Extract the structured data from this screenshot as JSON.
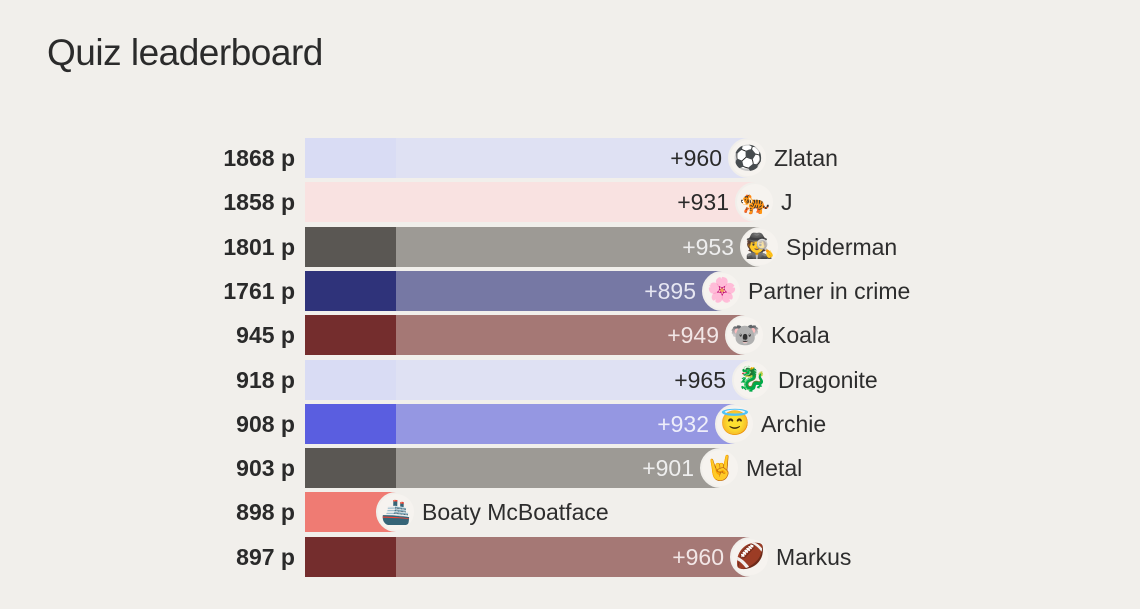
{
  "title": "Quiz leaderboard",
  "rows": [
    {
      "score": "1868 p",
      "delta": "+960",
      "name": "Zlatan",
      "avatar": "soccer-ball",
      "glyph": "⚽",
      "base": "#d9dcf4",
      "ext": "#dfe1f3",
      "delta_color": "#2a2a2a"
    },
    {
      "score": "1858 p",
      "delta": "+931",
      "name": "J",
      "avatar": "tiger",
      "glyph": "🐅",
      "base": "#f9e2e1",
      "ext": "#f9e2e1",
      "delta_color": "#2a2a2a"
    },
    {
      "score": "1801 p",
      "delta": "+953",
      "name": "Spiderman",
      "avatar": "spy",
      "glyph": "🕵",
      "base": "#5a5753",
      "ext": "#9d9a95",
      "delta_color": "#eeeeee"
    },
    {
      "score": "1761 p",
      "delta": "+895",
      "name": "Partner in crime",
      "avatar": "flower",
      "glyph": "🌸",
      "base": "#2f337a",
      "ext": "#7678a4",
      "delta_color": "#e6e6f2"
    },
    {
      "score": "945 p",
      "delta": "+949",
      "name": "Koala",
      "avatar": "koala",
      "glyph": "🐨",
      "base": "#742d2d",
      "ext": "#a57875",
      "delta_color": "#f2e6e6"
    },
    {
      "score": "918 p",
      "delta": "+965",
      "name": "Dragonite",
      "avatar": "dragon",
      "glyph": "🐉",
      "base": "#d9dcf4",
      "ext": "#dfe1f3",
      "delta_color": "#2a2a2a"
    },
    {
      "score": "908 p",
      "delta": "+932",
      "name": "Archie",
      "avatar": "angel",
      "glyph": "😇",
      "base": "#5a5ee0",
      "ext": "#9597e2",
      "delta_color": "#eeeefa"
    },
    {
      "score": "903 p",
      "delta": "+901",
      "name": "Metal",
      "avatar": "horns-hand",
      "glyph": "🤘",
      "base": "#5a5753",
      "ext": "#9d9a95",
      "delta_color": "#eeeeee"
    },
    {
      "score": "898 p",
      "delta": "",
      "name": "Boaty McBoatface",
      "avatar": "ship",
      "glyph": "🚢",
      "base": "#ef7b73",
      "ext": "#ef7b73",
      "delta_color": "#2a2a2a"
    },
    {
      "score": "897 p",
      "delta": "+960",
      "name": "Markus",
      "avatar": "football",
      "glyph": "🏈",
      "base": "#742d2d",
      "ext": "#a57875",
      "delta_color": "#f2e6e6"
    }
  ]
}
